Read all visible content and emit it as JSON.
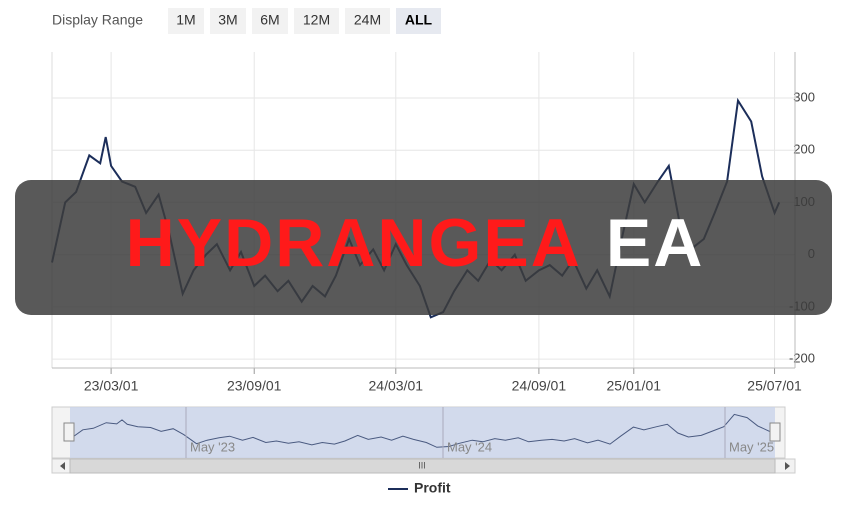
{
  "range_selector": {
    "label": "Display Range",
    "buttons": [
      "1M",
      "3M",
      "6M",
      "12M",
      "24M",
      "ALL"
    ],
    "active": 5
  },
  "navigator": {
    "labels": [
      "May '23",
      "May '24",
      "May '25"
    ],
    "scroll_label": "III"
  },
  "banner": {
    "text_red": "HYDRANGEA",
    "text_white": "EA"
  },
  "chart_data": {
    "type": "line",
    "x": [
      "22/12/15",
      "23/01/01",
      "23/01/15",
      "23/02/01",
      "23/02/15",
      "23/02/22",
      "23/03/01",
      "23/03/15",
      "23/04/01",
      "23/04/15",
      "23/05/01",
      "23/05/15",
      "23/06/01",
      "23/06/15",
      "23/07/01",
      "23/07/15",
      "23/08/01",
      "23/08/15",
      "23/09/01",
      "23/09/15",
      "23/10/01",
      "23/10/15",
      "23/11/01",
      "23/11/15",
      "23/12/01",
      "23/12/15",
      "24/01/01",
      "24/01/15",
      "24/02/01",
      "24/02/15",
      "24/03/01",
      "24/03/15",
      "24/04/01",
      "24/04/15",
      "24/05/01",
      "24/05/15",
      "24/06/01",
      "24/06/15",
      "24/07/01",
      "24/07/15",
      "24/08/01",
      "24/08/15",
      "24/09/01",
      "24/09/15",
      "24/10/01",
      "24/10/15",
      "24/11/01",
      "24/11/15",
      "24/12/01",
      "24/12/15",
      "25/01/01",
      "25/01/15",
      "25/02/01",
      "25/02/15",
      "25/03/01",
      "25/03/15",
      "25/04/01",
      "25/04/15",
      "25/05/01",
      "25/05/15",
      "25/06/01",
      "25/06/15",
      "25/07/01",
      "25/07/07"
    ],
    "series": [
      {
        "name": "Profit",
        "color": "#1c2e5a",
        "values": [
          -15,
          100,
          120,
          190,
          175,
          225,
          170,
          140,
          130,
          80,
          115,
          40,
          -75,
          -30,
          0,
          20,
          -30,
          5,
          -60,
          -40,
          -70,
          -50,
          -90,
          -60,
          -80,
          -40,
          30,
          -20,
          10,
          -30,
          20,
          -20,
          -60,
          -120,
          -110,
          -70,
          -30,
          -50,
          -10,
          -30,
          0,
          -50,
          -30,
          -20,
          -40,
          -10,
          -65,
          -30,
          -80,
          20,
          135,
          100,
          140,
          170,
          60,
          10,
          30,
          80,
          140,
          295,
          255,
          150,
          80,
          100
        ]
      }
    ],
    "xlim": [
      "22/12/15",
      "25/07/08"
    ],
    "xticks": [
      "23/03/01",
      "23/09/01",
      "24/03/01",
      "24/09/01",
      "25/01/01",
      "25/07/01"
    ],
    "ylim": [
      -217,
      388
    ],
    "yticks": [
      -200,
      -100,
      0,
      100,
      200,
      300
    ],
    "grid": true
  }
}
